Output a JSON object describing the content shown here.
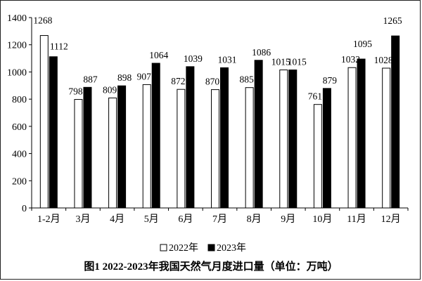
{
  "chart_data": {
    "type": "bar",
    "title": "图1 2022-2023年我国天然气月度进口量（单位：万吨）",
    "xlabel": "",
    "ylabel": "",
    "ylim": [
      0,
      1400
    ],
    "yticks": [
      "0",
      "200",
      "400",
      "600",
      "800",
      "1000",
      "1200",
      "1400"
    ],
    "grid": false,
    "legend_position": "bottom",
    "categories": [
      "1-2月",
      "3月",
      "4月",
      "5月",
      "6月",
      "7月",
      "8月",
      "9月",
      "10月",
      "11月",
      "12月"
    ],
    "series": [
      {
        "name": "2022年",
        "color": "#ffffff",
        "values": [
          1268,
          798,
          809,
          907,
          872,
          870,
          885,
          1015,
          761,
          1032,
          1028
        ]
      },
      {
        "name": "2023年",
        "color": "#000000",
        "values": [
          1112,
          887,
          898,
          1064,
          1039,
          1031,
          1086,
          1015,
          879,
          1095,
          1265
        ]
      }
    ]
  }
}
